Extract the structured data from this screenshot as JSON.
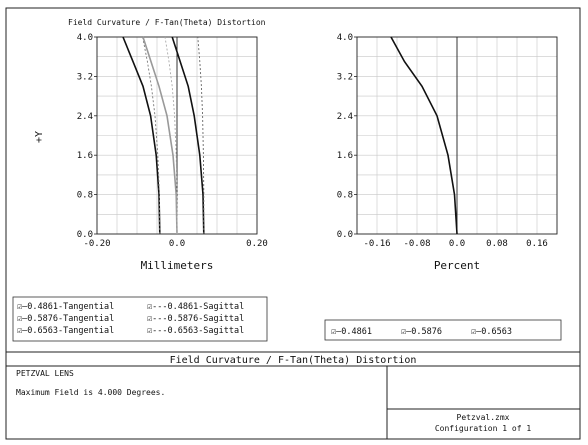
{
  "window": {
    "plot_title": "Field Curvature / F-Tan(Theta) Distortion",
    "footer_title": "Field Curvature / F-Tan(Theta) Distortion",
    "lens_name": "PETZVAL LENS",
    "max_field_text": "Maximum Field is 4.000 Degrees.",
    "file_name": "Petzval.zmx",
    "configuration": "Configuration 1 of 1"
  },
  "legend_left": [
    {
      "label": "0.4861-Tangential",
      "style": "solid",
      "color": "#000000"
    },
    {
      "label": "0.4861-Sagittal",
      "style": "dashed",
      "color": "#000000"
    },
    {
      "label": "0.5876-Tangential",
      "style": "solid",
      "color": "#000000"
    },
    {
      "label": "0.5876-Sagittal",
      "style": "dashed",
      "color": "#000000"
    },
    {
      "label": "0.6563-Tangential",
      "style": "solid",
      "color": "#000000"
    },
    {
      "label": "0.6563-Sagittal",
      "style": "dashed",
      "color": "#000000"
    }
  ],
  "legend_right": [
    {
      "label": "0.4861",
      "style": "solid",
      "color": "#000000"
    },
    {
      "label": "0.5876",
      "style": "solid",
      "color": "#000000"
    },
    {
      "label": "0.6563",
      "style": "solid",
      "color": "#000000"
    }
  ],
  "legend_marks": {
    "checkbox": "☑",
    "solid": "—",
    "dashed": "---"
  },
  "chart_data": [
    {
      "type": "line",
      "xlabel": "Millimeters",
      "ylabel": "+Y",
      "xlim": [
        -0.2,
        0.2
      ],
      "ylim": [
        0,
        4.0
      ],
      "x_ticks": [
        -0.2,
        0.0,
        0.2
      ],
      "x_tick_labels": [
        "-0.20",
        "0.0",
        "0.20"
      ],
      "y_ticks": [
        0.0,
        0.8,
        1.6,
        2.4,
        3.2,
        4.0
      ],
      "y_tick_labels": [
        "0.0",
        "0.8",
        "1.6",
        "2.4",
        "3.2",
        "4.0"
      ],
      "grid": true,
      "grid_columns": 8,
      "grid_rows": 10,
      "series": [
        {
          "name": "0.4861-Tangential",
          "style": "solid",
          "color": "#111111",
          "x": [
            -0.043,
            -0.045,
            -0.052,
            -0.066,
            -0.085,
            -0.11,
            -0.135
          ],
          "y": [
            0.0,
            0.8,
            1.6,
            2.4,
            3.0,
            3.5,
            4.0
          ]
        },
        {
          "name": "0.4861-Sagittal",
          "style": "dotted",
          "color": "#777777",
          "x": [
            -0.043,
            -0.044,
            -0.048,
            -0.055,
            -0.064,
            -0.074,
            -0.086
          ],
          "y": [
            0.0,
            0.8,
            1.6,
            2.4,
            3.0,
            3.5,
            4.0
          ]
        },
        {
          "name": "0.5876-Tangential",
          "style": "solid",
          "color": "#999999",
          "x": [
            0.0,
            -0.002,
            -0.01,
            -0.025,
            -0.045,
            -0.065,
            -0.085
          ],
          "y": [
            0.0,
            0.8,
            1.6,
            2.4,
            3.0,
            3.5,
            4.0
          ]
        },
        {
          "name": "0.5876-Sagittal",
          "style": "dotted",
          "color": "#aaaaaa",
          "x": [
            0.0,
            0.0,
            -0.002,
            -0.006,
            -0.012,
            -0.02,
            -0.03
          ],
          "y": [
            0.0,
            0.8,
            1.6,
            2.4,
            3.0,
            3.5,
            4.0
          ]
        },
        {
          "name": "0.6563-Tangential",
          "style": "solid",
          "color": "#111111",
          "x": [
            0.067,
            0.065,
            0.057,
            0.043,
            0.028,
            0.008,
            -0.012
          ],
          "y": [
            0.0,
            0.8,
            1.6,
            2.4,
            3.0,
            3.5,
            4.0
          ]
        },
        {
          "name": "0.6563-Sagittal",
          "style": "dotted",
          "color": "#666666",
          "x": [
            0.067,
            0.067,
            0.066,
            0.064,
            0.061,
            0.057,
            0.052
          ],
          "y": [
            0.0,
            0.8,
            1.6,
            2.4,
            3.0,
            3.5,
            4.0
          ]
        }
      ]
    },
    {
      "type": "line",
      "xlabel": "Percent",
      "ylabel": "",
      "xlim": [
        -0.2,
        0.2
      ],
      "ylim": [
        0,
        4.0
      ],
      "x_ticks": [
        -0.16,
        -0.08,
        0.0,
        0.08,
        0.16
      ],
      "x_tick_labels": [
        "-0.16",
        "-0.08",
        "0.0",
        "0.08",
        "0.16"
      ],
      "y_ticks": [
        0.0,
        0.8,
        1.6,
        2.4,
        3.2,
        4.0
      ],
      "y_tick_labels": [
        "0.0",
        "0.8",
        "1.6",
        "2.4",
        "3.2",
        "4.0"
      ],
      "grid": true,
      "grid_columns": 10,
      "grid_rows": 10,
      "series": [
        {
          "name": "0.4861",
          "style": "solid",
          "color": "#111111",
          "x": [
            0.0,
            -0.005,
            -0.018,
            -0.04,
            -0.07,
            -0.105,
            -0.132
          ],
          "y": [
            0.0,
            0.8,
            1.6,
            2.4,
            3.0,
            3.5,
            4.0
          ]
        }
      ]
    }
  ]
}
